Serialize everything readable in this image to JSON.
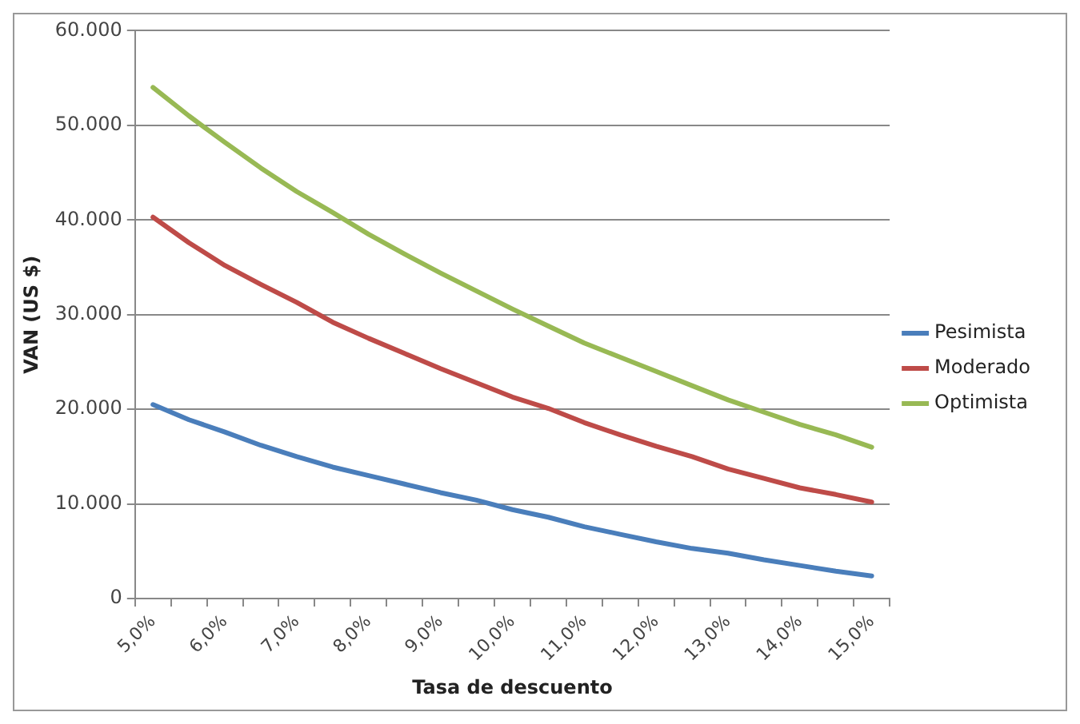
{
  "chart_data": {
    "type": "line",
    "xlabel": "Tasa de descuento",
    "ylabel": "VAN (US $)",
    "categories": [
      "5,0%",
      null,
      "6,0%",
      null,
      "7,0%",
      null,
      "8,0%",
      null,
      "9,0%",
      null,
      "10,0%",
      null,
      "11,0%",
      null,
      "12,0%",
      null,
      "13,0%",
      null,
      "14,0%",
      null,
      "15,0%"
    ],
    "series": [
      {
        "name": "Pesimista",
        "color": "#4a7ebb",
        "values": [
          20500,
          18900,
          17600,
          16200,
          15000,
          13900,
          13000,
          12100,
          11200,
          10400,
          9400,
          8600,
          7600,
          6800,
          6000,
          5300,
          4800,
          4100,
          3500,
          2900,
          2400
        ]
      },
      {
        "name": "Moderado",
        "color": "#be4b48",
        "values": [
          40300,
          37600,
          35200,
          33200,
          31300,
          29200,
          27500,
          25900,
          24300,
          22800,
          21300,
          20100,
          18600,
          17300,
          16100,
          15000,
          13700,
          12700,
          11700,
          11000,
          10200
        ]
      },
      {
        "name": "Optimista",
        "color": "#98b954",
        "values": [
          54000,
          51000,
          48200,
          45500,
          43000,
          40800,
          38500,
          36400,
          34400,
          32500,
          30600,
          28800,
          27000,
          25500,
          24000,
          22500,
          21000,
          19700,
          18400,
          17300,
          16000
        ]
      }
    ],
    "ylim": [
      0,
      60000
    ],
    "yticks": [
      {
        "value": 0,
        "label": "0"
      },
      {
        "value": 10000,
        "label": "10.000"
      },
      {
        "value": 20000,
        "label": "20.000"
      },
      {
        "value": 30000,
        "label": "30.000"
      },
      {
        "value": 40000,
        "label": "40.000"
      },
      {
        "value": 50000,
        "label": "50.000"
      },
      {
        "value": 60000,
        "label": "60.000"
      }
    ],
    "grid": "y",
    "legend": "right",
    "marker": "none",
    "line_style": "solid"
  }
}
